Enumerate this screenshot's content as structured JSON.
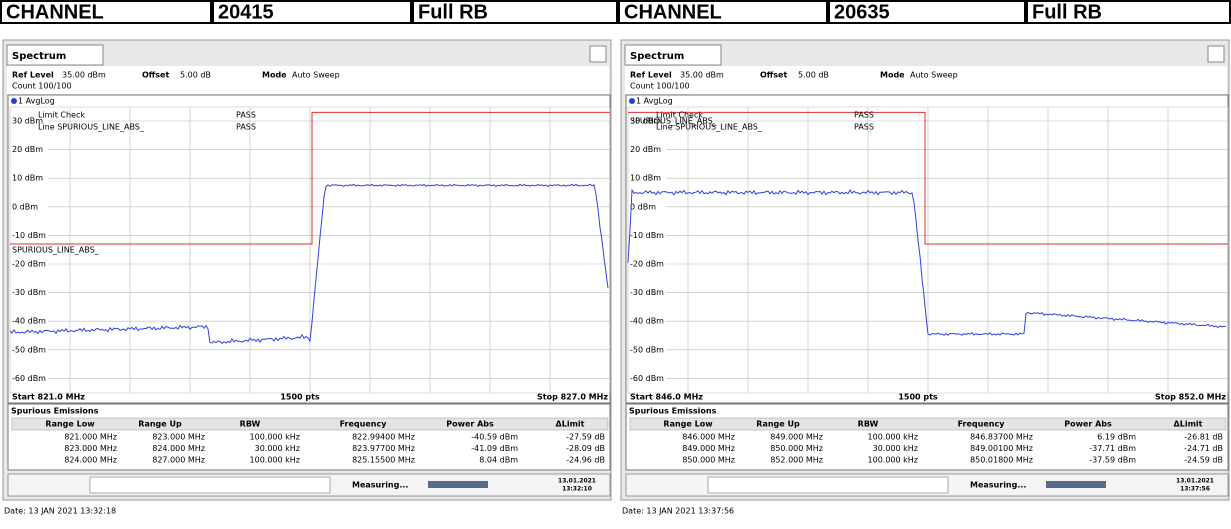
{
  "header": {
    "cells": [
      "CHANNEL",
      "20415",
      "Full RB",
      "CHANNEL",
      "20635",
      "Full RB"
    ]
  },
  "panels": [
    {
      "tab": "Spectrum",
      "ref_level_label": "Ref Level",
      "ref_level": "35.00 dBm",
      "offset_label": "Offset",
      "offset": "5.00 dB",
      "mode_label": "Mode",
      "mode": "Auto Sweep",
      "count": "Count 100/100",
      "trace": "1 AvgLog",
      "limit_check": "Limit Check",
      "limit_line": "Line  SPURIOUS_LINE_ABS_",
      "pass1": "PASS",
      "pass2": "PASS",
      "line_label": "SPURIOUS_LINE_ABS_",
      "y_labels": [
        "30 dBm",
        "20 dBm",
        "10 dBm",
        "0 dBm",
        "-10 dBm",
        "-20 dBm",
        "-30 dBm",
        "-40 dBm",
        "-50 dBm",
        "-60 dBm"
      ],
      "start": "Start 821.0 MHz",
      "pts": "1500 pts",
      "stop": "Stop 827.0 MHz",
      "table": {
        "title": "Spurious Emissions",
        "columns": [
          "Range Low",
          "Range Up",
          "RBW",
          "Frequency",
          "Power Abs",
          "ΔLimit"
        ],
        "rows": [
          [
            "821.000 MHz",
            "823.000 MHz",
            "100.000 kHz",
            "822.99400 MHz",
            "-40.59 dBm",
            "-27.59 dB"
          ],
          [
            "823.000 MHz",
            "824.000 MHz",
            "30.000 kHz",
            "823.97700 MHz",
            "-41.09 dBm",
            "-28.09 dB"
          ],
          [
            "824.000 MHz",
            "827.000 MHz",
            "100.000 kHz",
            "825.15500 MHz",
            "8.04 dBm",
            "-24.96 dB"
          ]
        ]
      },
      "status": "Measuring...",
      "status_date": "13.01.2021",
      "status_time": "13:32:10",
      "date": "Date: 13 JAN 2021  13:32:18"
    },
    {
      "tab": "Spectrum",
      "ref_level_label": "Ref Level",
      "ref_level": "35.00 dBm",
      "offset_label": "Offset",
      "offset": "5.00 dB",
      "mode_label": "Mode",
      "mode": "Auto Sweep",
      "count": "Count 100/100",
      "trace": "1 AvgLog",
      "limit_check": "Limit Check",
      "limit_line": "Line  SPURIOUS_LINE_ABS_",
      "pass1": "PASS",
      "pass2": "PASS",
      "line_label": "SPURIOUS_LINE_ABS_",
      "y_labels": [
        "30 dBm",
        "20 dBm",
        "10 dBm",
        "0 dBm",
        "-10 dBm",
        "-20 dBm",
        "-30 dBm",
        "-40 dBm",
        "-50 dBm",
        "-60 dBm"
      ],
      "start": "Start 846.0 MHz",
      "pts": "1500 pts",
      "stop": "Stop 852.0 MHz",
      "table": {
        "title": "Spurious Emissions",
        "columns": [
          "Range Low",
          "Range Up",
          "RBW",
          "Frequency",
          "Power Abs",
          "ΔLimit"
        ],
        "rows": [
          [
            "846.000 MHz",
            "849.000 MHz",
            "100.000 kHz",
            "846.83700 MHz",
            "6.19 dBm",
            "-26.81 dB"
          ],
          [
            "849.000 MHz",
            "850.000 MHz",
            "30.000 kHz",
            "849.00100 MHz",
            "-37.71 dBm",
            "-24.71 dB"
          ],
          [
            "850.000 MHz",
            "852.000 MHz",
            "100.000 kHz",
            "850.01800 MHz",
            "-37.59 dBm",
            "-24.59 dB"
          ]
        ]
      },
      "status": "Measuring...",
      "status_date": "13.01.2021",
      "status_time": "13:37:56",
      "date": "Date: 13 JAN 2021  13:37:56"
    }
  ]
}
